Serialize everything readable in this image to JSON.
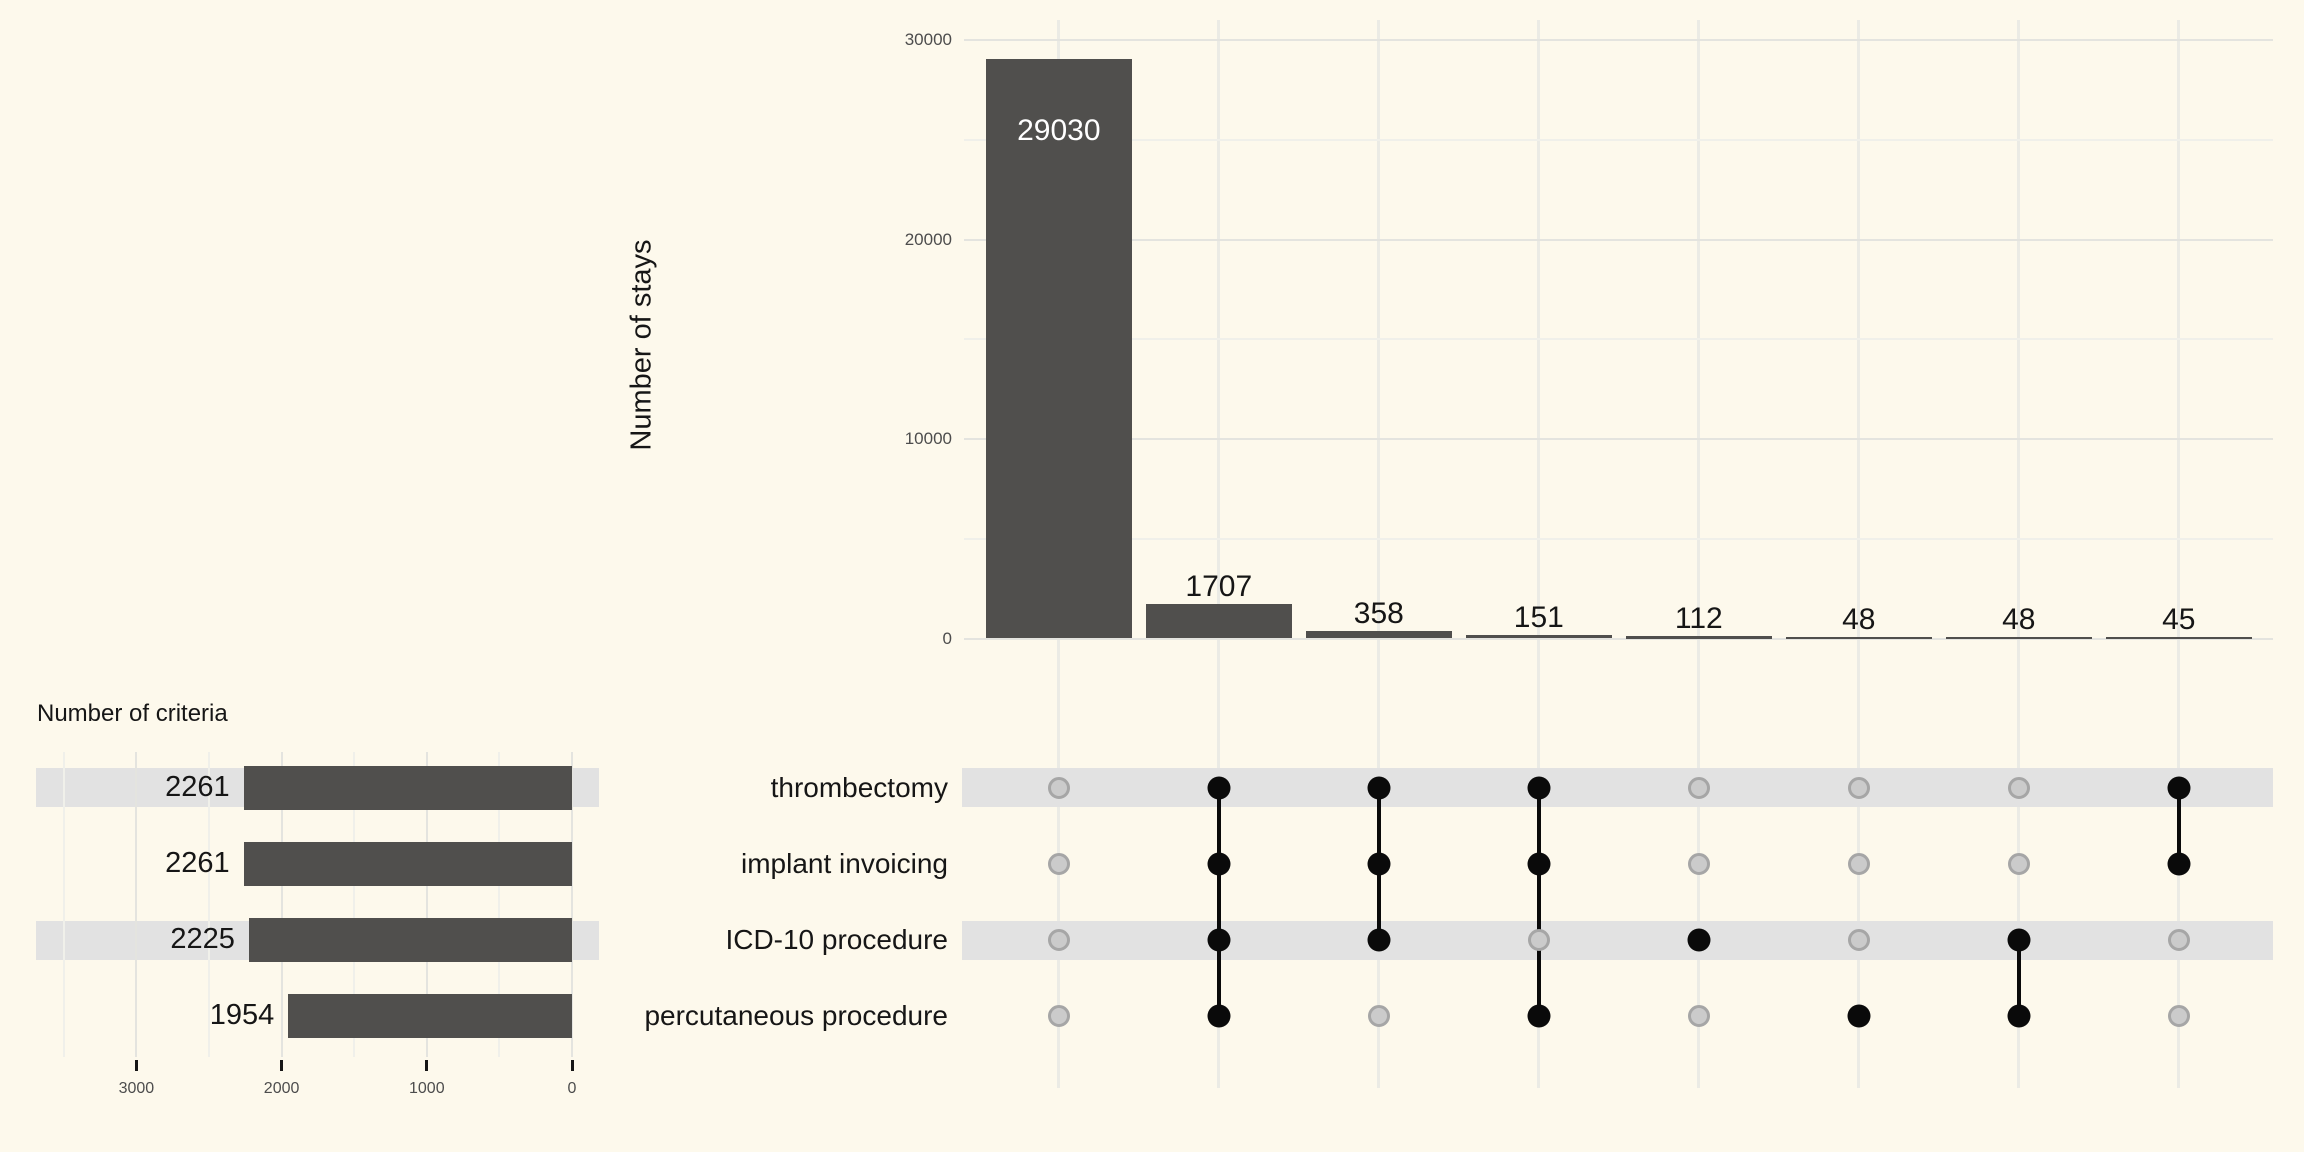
{
  "colors": {
    "background": "#FDF9EC",
    "bar_fill": "#504F4D",
    "stripe": "#E2E2E2",
    "dot_active": "#0A0A0A",
    "dot_inactive_fill": "#CBCBCB",
    "dot_inactive_stroke": "#A6A6A6",
    "grid_major": "#E4E4DF",
    "grid_minor": "#F0F0EA",
    "grid_column": "#EBEBE5",
    "text_dark": "#161616",
    "text_axis_gray": "#4D4D4D",
    "bar_inside_label": "#FFFFFF"
  },
  "chart_data": [
    {
      "type": "bar",
      "id": "intersection-sizes",
      "ylabel": "Number of stays",
      "values": [
        29030,
        1707,
        358,
        151,
        112,
        48,
        48,
        45
      ],
      "bar_labels": [
        "29030",
        "1707",
        "358",
        "151",
        "112",
        "48",
        "48",
        "45"
      ],
      "yticks": [
        {
          "value": 0,
          "label": "0"
        },
        {
          "value": 10000,
          "label": "10000"
        },
        {
          "value": 20000,
          "label": "20000"
        },
        {
          "value": 30000,
          "label": "30000"
        }
      ],
      "yticks_minor": [
        5000,
        15000,
        25000
      ],
      "ylim": [
        0,
        30000
      ],
      "grid": "on",
      "first_label_inside_bar": true
    },
    {
      "type": "bar",
      "id": "set-sizes",
      "orientation": "horizontal",
      "title": "Number of criteria",
      "categories": [
        "thrombectomy",
        "implant invoicing",
        "ICD-10 procedure",
        "percutaneous procedure"
      ],
      "values": [
        2261,
        2261,
        2225,
        1954
      ],
      "bar_labels": [
        "2261",
        "2261",
        "2225",
        "1954"
      ],
      "xticks": [
        {
          "value": 3000,
          "label": "3000"
        },
        {
          "value": 2000,
          "label": "2000"
        },
        {
          "value": 1000,
          "label": "1000"
        },
        {
          "value": 0,
          "label": "0"
        }
      ],
      "xticks_minor": [
        3500,
        2500,
        1500,
        500
      ],
      "xlim_reversed": [
        3000,
        0
      ],
      "grid": "on"
    },
    {
      "type": "matrix",
      "id": "intersection-matrix",
      "rows": [
        "thrombectomy",
        "implant invoicing",
        "ICD-10 procedure",
        "percutaneous procedure"
      ],
      "striped_rows": [
        0,
        2
      ],
      "columns": [
        {
          "members": []
        },
        {
          "members": [
            0,
            1,
            2,
            3
          ]
        },
        {
          "members": [
            0,
            1,
            2
          ]
        },
        {
          "members": [
            0,
            1,
            3
          ]
        },
        {
          "members": [
            2
          ]
        },
        {
          "members": [
            3
          ]
        },
        {
          "members": [
            2,
            3
          ]
        },
        {
          "members": [
            0,
            1
          ]
        }
      ]
    }
  ]
}
